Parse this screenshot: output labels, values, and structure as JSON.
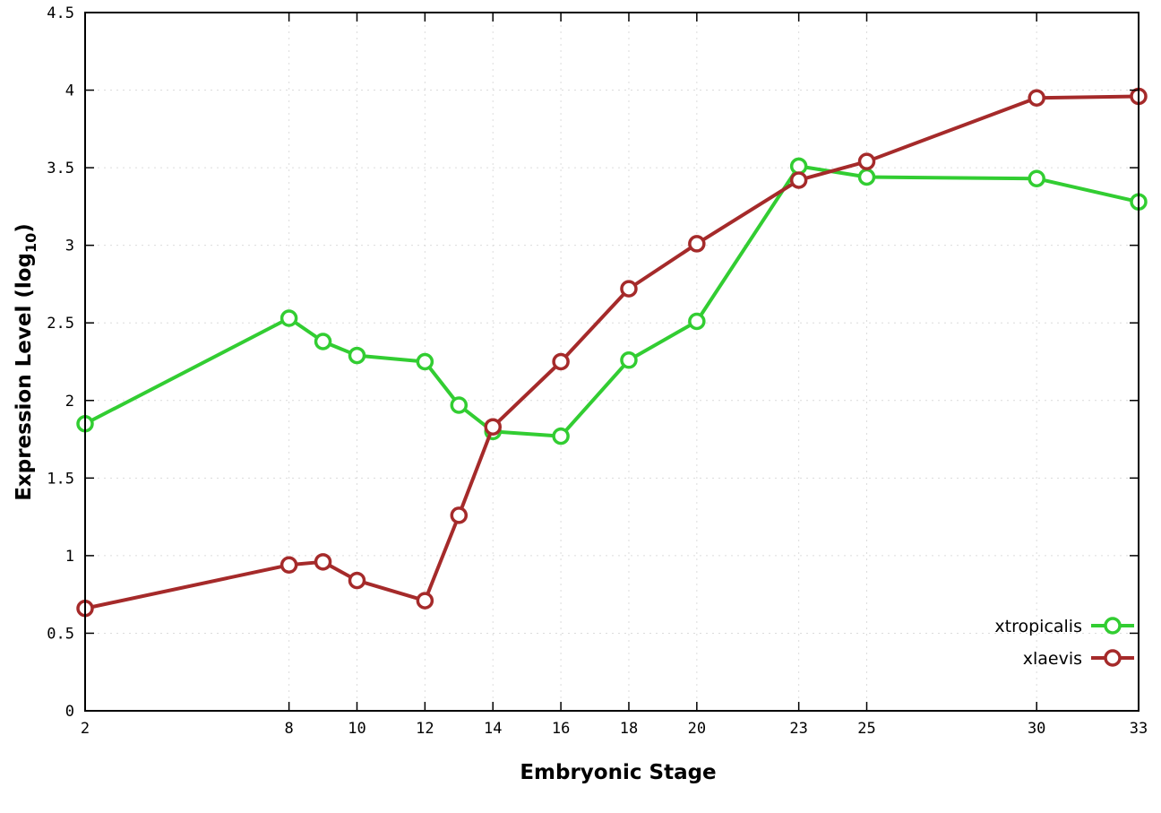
{
  "chart_data": {
    "type": "line",
    "title": "",
    "xlabel": "Embryonic Stage",
    "ylabel": "Expression Level (log10)",
    "ylabel_parts": {
      "prefix": "Expression Level (log",
      "sub": "10",
      "suffix": ")"
    },
    "xlim": [
      2,
      33
    ],
    "ylim": [
      0,
      4.5
    ],
    "x_ticks": [
      2,
      8,
      10,
      12,
      14,
      16,
      18,
      20,
      23,
      25,
      30,
      33
    ],
    "y_ticks": [
      0,
      0.5,
      1,
      1.5,
      2,
      2.5,
      3,
      3.5,
      4,
      4.5
    ],
    "x": [
      2,
      8,
      9,
      10,
      12,
      13,
      14,
      16,
      18,
      20,
      23,
      25,
      30,
      33
    ],
    "series": [
      {
        "name": "xtropicalis",
        "color": "#32cd32",
        "values": [
          1.85,
          2.53,
          2.38,
          2.29,
          2.25,
          1.97,
          1.8,
          1.77,
          2.26,
          2.51,
          3.51,
          3.44,
          3.43,
          3.28
        ]
      },
      {
        "name": "xlaevis",
        "color": "#a52a2a",
        "values": [
          0.66,
          0.94,
          0.96,
          0.84,
          0.71,
          1.26,
          1.83,
          2.25,
          2.72,
          3.01,
          3.42,
          3.54,
          3.95,
          3.96
        ]
      }
    ],
    "legend_position": "bottom-right",
    "grid": true,
    "colors": {
      "grid": "#dcdcdc",
      "border": "#000000",
      "marker_fill": "#ffffff"
    }
  }
}
